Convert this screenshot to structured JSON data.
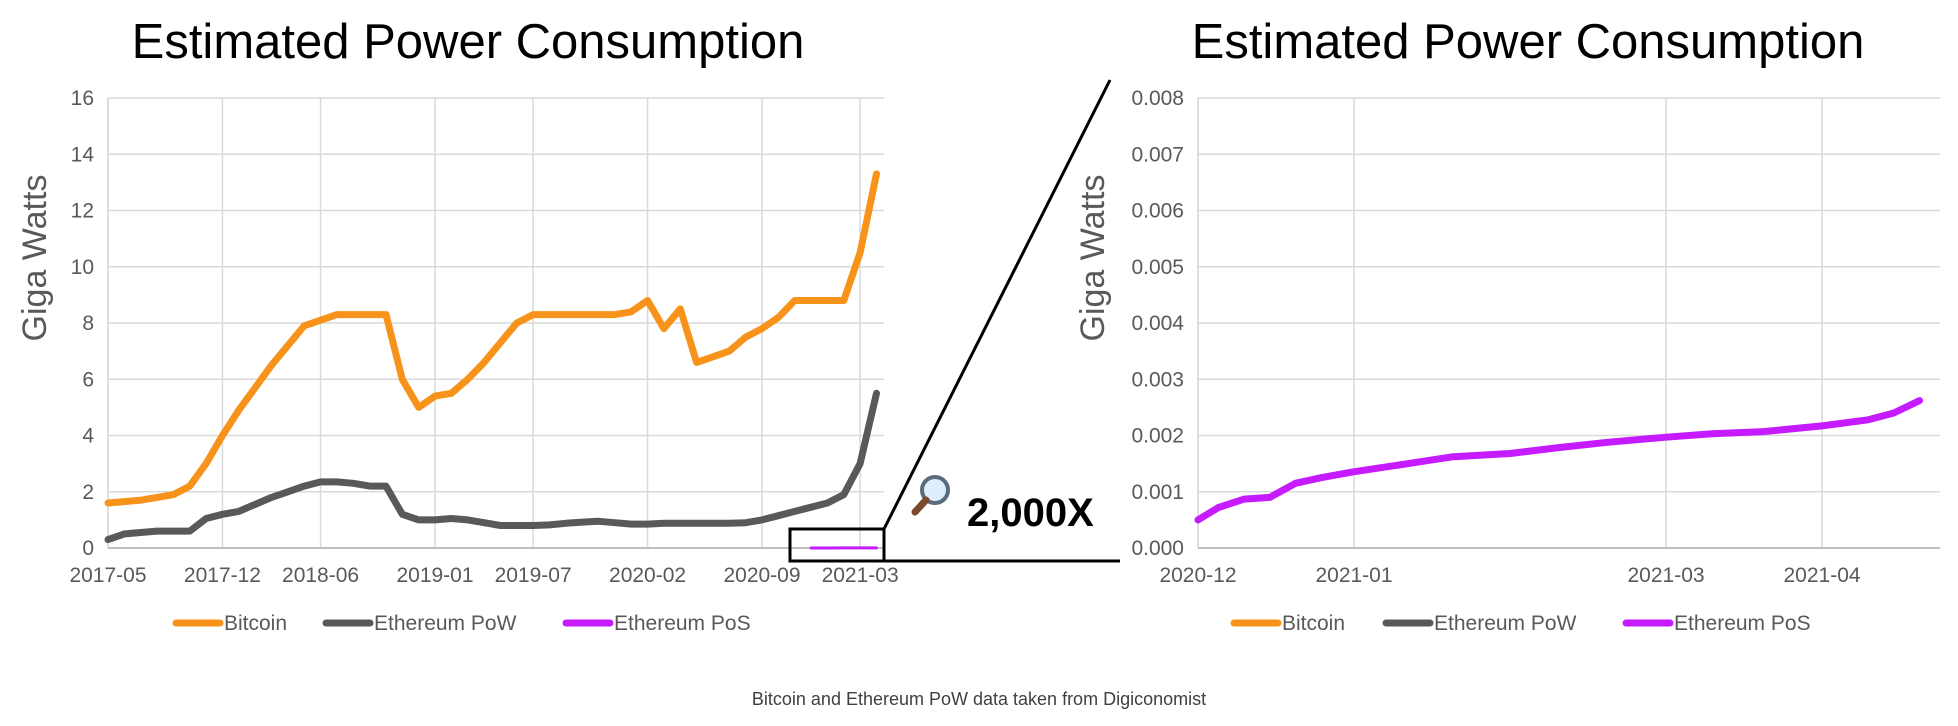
{
  "footnote": "Bitcoin and Ethereum PoW data taken from Digiconomist",
  "zoom": {
    "label": "2,000X",
    "icon": "magnifying-glass-icon"
  },
  "colors": {
    "bitcoin": "#F7931A",
    "eth_pow": "#595959",
    "eth_pos": "#C61AFF",
    "grid": "#D9D9D9"
  },
  "chart_data": [
    {
      "type": "line",
      "title": "Estimated Power Consumption",
      "ylabel": "Giga Watts",
      "xlabel": "",
      "ylim": [
        0,
        16
      ],
      "yticks": [
        "0",
        "2",
        "4",
        "6",
        "8",
        "10",
        "12",
        "14",
        "16"
      ],
      "xticks": [
        "2017-05",
        "2017-12",
        "2018-06",
        "2019-01",
        "2019-07",
        "2020-02",
        "2020-09",
        "2021-03"
      ],
      "grid": true,
      "legend": "bottom",
      "series": [
        {
          "name": "Bitcoin",
          "color": "#F7931A",
          "x": [
            "2017-05",
            "2017-06",
            "2017-07",
            "2017-08",
            "2017-09",
            "2017-10",
            "2017-11",
            "2017-12",
            "2018-01",
            "2018-02",
            "2018-03",
            "2018-04",
            "2018-05",
            "2018-06",
            "2018-07",
            "2018-08",
            "2018-09",
            "2018-10",
            "2018-11",
            "2018-12",
            "2019-01",
            "2019-02",
            "2019-03",
            "2019-04",
            "2019-05",
            "2019-06",
            "2019-07",
            "2019-08",
            "2019-09",
            "2019-10",
            "2019-11",
            "2019-12",
            "2020-01",
            "2020-02",
            "2020-03",
            "2020-04",
            "2020-05",
            "2020-06",
            "2020-07",
            "2020-08",
            "2020-09",
            "2020-10",
            "2020-11",
            "2020-12",
            "2021-01",
            "2021-02",
            "2021-03",
            "2021-04"
          ],
          "y": [
            1.6,
            1.65,
            1.7,
            1.8,
            1.9,
            2.2,
            3.0,
            4.0,
            4.9,
            5.7,
            6.5,
            7.2,
            7.9,
            8.1,
            8.3,
            8.3,
            8.3,
            8.3,
            6.0,
            5.0,
            5.4,
            5.5,
            6.0,
            6.6,
            7.3,
            8.0,
            8.3,
            8.3,
            8.3,
            8.3,
            8.3,
            8.3,
            8.4,
            8.8,
            7.8,
            8.5,
            6.6,
            6.8,
            7.0,
            7.5,
            7.8,
            8.2,
            8.8,
            8.8,
            8.8,
            8.8,
            10.5,
            13.3
          ]
        },
        {
          "name": "Ethereum PoW",
          "color": "#595959",
          "x": [
            "2017-05",
            "2017-06",
            "2017-07",
            "2017-08",
            "2017-09",
            "2017-10",
            "2017-11",
            "2017-12",
            "2018-01",
            "2018-02",
            "2018-03",
            "2018-04",
            "2018-05",
            "2018-06",
            "2018-07",
            "2018-08",
            "2018-09",
            "2018-10",
            "2018-11",
            "2018-12",
            "2019-01",
            "2019-02",
            "2019-03",
            "2019-04",
            "2019-05",
            "2019-06",
            "2019-07",
            "2019-08",
            "2019-09",
            "2019-10",
            "2019-11",
            "2019-12",
            "2020-01",
            "2020-02",
            "2020-03",
            "2020-04",
            "2020-05",
            "2020-06",
            "2020-07",
            "2020-08",
            "2020-09",
            "2020-10",
            "2020-11",
            "2020-12",
            "2021-01",
            "2021-02",
            "2021-03",
            "2021-04"
          ],
          "y": [
            0.3,
            0.5,
            0.55,
            0.6,
            0.6,
            0.6,
            1.05,
            1.2,
            1.3,
            1.55,
            1.8,
            2.0,
            2.2,
            2.35,
            2.35,
            2.3,
            2.2,
            2.2,
            1.2,
            1.0,
            1.0,
            1.05,
            1.0,
            0.9,
            0.8,
            0.8,
            0.8,
            0.82,
            0.88,
            0.92,
            0.95,
            0.9,
            0.85,
            0.85,
            0.88,
            0.88,
            0.88,
            0.88,
            0.88,
            0.9,
            1.0,
            1.15,
            1.3,
            1.45,
            1.6,
            1.9,
            3.0,
            5.5
          ]
        },
        {
          "name": "Ethereum PoS",
          "color": "#C61AFF",
          "x": [
            "2020-12",
            "2021-01",
            "2021-02",
            "2021-03",
            "2021-04"
          ],
          "y": [
            0.0005,
            0.0016,
            0.0019,
            0.0021,
            0.0026
          ]
        }
      ]
    },
    {
      "type": "line",
      "title": "Estimated Power Consumption",
      "ylabel": "Giga Watts",
      "xlabel": "",
      "ylim": [
        0,
        0.008
      ],
      "yticks": [
        "0.000",
        "0.001",
        "0.002",
        "0.003",
        "0.004",
        "0.005",
        "0.006",
        "0.007",
        "0.008"
      ],
      "xticks": [
        "2020-12",
        "2021-01",
        "2021-03",
        "2021-04"
      ],
      "grid": true,
      "legend": "bottom",
      "series": [
        {
          "name": "Bitcoin",
          "color": "#F7931A",
          "x": [],
          "y": []
        },
        {
          "name": "Ethereum PoW",
          "color": "#595959",
          "x": [],
          "y": []
        },
        {
          "name": "Ethereum PoS",
          "color": "#C61AFF",
          "x": [
            "2020-12-01",
            "2020-12-05",
            "2020-12-10",
            "2020-12-15",
            "2020-12-20",
            "2020-12-25",
            "2020-12-31",
            "2021-01-10",
            "2021-01-20",
            "2021-02-01",
            "2021-02-10",
            "2021-02-20",
            "2021-03-01",
            "2021-03-10",
            "2021-03-20",
            "2021-04-01",
            "2021-04-10",
            "2021-04-15",
            "2021-04-20"
          ],
          "y": [
            0.0005,
            0.00072,
            0.00087,
            0.0009,
            0.00115,
            0.00125,
            0.00135,
            0.00148,
            0.00162,
            0.00168,
            0.00178,
            0.00188,
            0.00197,
            0.00203,
            0.00207,
            0.00217,
            0.00228,
            0.0024,
            0.00262
          ]
        }
      ]
    }
  ]
}
